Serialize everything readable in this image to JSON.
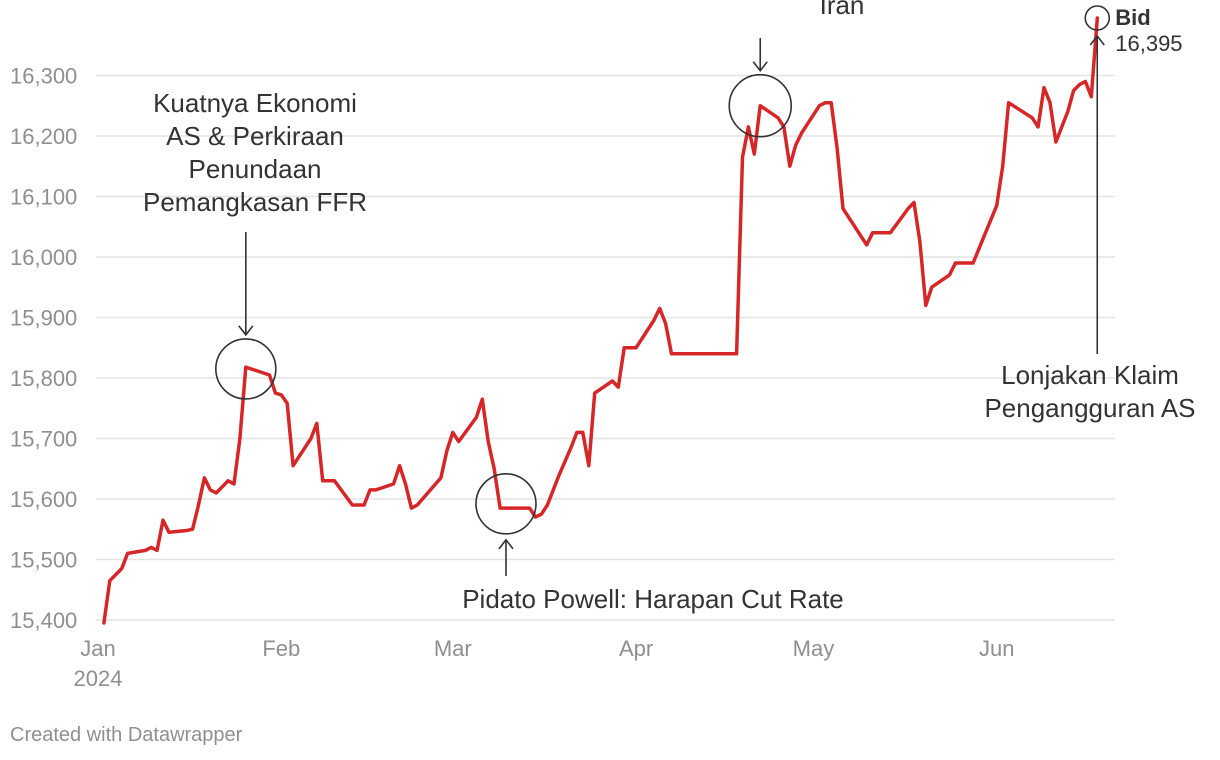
{
  "chart_data": {
    "type": "line",
    "title": "",
    "xlabel": "",
    "ylabel": "",
    "ylim": [
      15400,
      16395
    ],
    "y_ticks": [
      15400,
      15500,
      15600,
      15700,
      15800,
      15900,
      16000,
      16100,
      16200,
      16300
    ],
    "y_tick_labels": [
      "15,400",
      "15,500",
      "15,600",
      "15,700",
      "15,800",
      "15,900",
      "16,000",
      "16,100",
      "16,200",
      "16,300"
    ],
    "x_range": [
      "2024-01-01",
      "2024-06-21"
    ],
    "x_ticks": [
      {
        "date": "2024-01-01",
        "label": "Jan",
        "sub": "2024"
      },
      {
        "date": "2024-02-01",
        "label": "Feb",
        "sub": ""
      },
      {
        "date": "2024-03-01",
        "label": "Mar",
        "sub": ""
      },
      {
        "date": "2024-04-01",
        "label": "Apr",
        "sub": ""
      },
      {
        "date": "2024-05-01",
        "label": "May",
        "sub": ""
      },
      {
        "date": "2024-06-01",
        "label": "Jun",
        "sub": ""
      }
    ],
    "grid": true,
    "series": [
      {
        "name": "Bid",
        "color": "#d62728",
        "points": [
          [
            "2024-01-02",
            15395
          ],
          [
            "2024-01-03",
            15465
          ],
          [
            "2024-01-05",
            15485
          ],
          [
            "2024-01-06",
            15510
          ],
          [
            "2024-01-09",
            15515
          ],
          [
            "2024-01-10",
            15520
          ],
          [
            "2024-01-11",
            15515
          ],
          [
            "2024-01-12",
            15565
          ],
          [
            "2024-01-13",
            15545
          ],
          [
            "2024-01-16",
            15548
          ],
          [
            "2024-01-17",
            15550
          ],
          [
            "2024-01-18",
            15590
          ],
          [
            "2024-01-19",
            15635
          ],
          [
            "2024-01-20",
            15615
          ],
          [
            "2024-01-21",
            15610
          ],
          [
            "2024-01-23",
            15630
          ],
          [
            "2024-01-24",
            15625
          ],
          [
            "2024-01-25",
            15700
          ],
          [
            "2024-01-26",
            15818
          ],
          [
            "2024-01-30",
            15805
          ],
          [
            "2024-01-31",
            15775
          ],
          [
            "2024-02-01",
            15772
          ],
          [
            "2024-02-02",
            15758
          ],
          [
            "2024-02-03",
            15655
          ],
          [
            "2024-02-06",
            15700
          ],
          [
            "2024-02-07",
            15725
          ],
          [
            "2024-02-08",
            15630
          ],
          [
            "2024-02-10",
            15630
          ],
          [
            "2024-02-13",
            15590
          ],
          [
            "2024-02-15",
            15590
          ],
          [
            "2024-02-16",
            15615
          ],
          [
            "2024-02-17",
            15615
          ],
          [
            "2024-02-20",
            15625
          ],
          [
            "2024-02-21",
            15655
          ],
          [
            "2024-02-22",
            15625
          ],
          [
            "2024-02-23",
            15585
          ],
          [
            "2024-02-24",
            15590
          ],
          [
            "2024-02-28",
            15635
          ],
          [
            "2024-02-29",
            15680
          ],
          [
            "2024-03-01",
            15710
          ],
          [
            "2024-03-02",
            15695
          ],
          [
            "2024-03-05",
            15735
          ],
          [
            "2024-03-06",
            15765
          ],
          [
            "2024-03-07",
            15695
          ],
          [
            "2024-03-08",
            15650
          ],
          [
            "2024-03-09",
            15585
          ],
          [
            "2024-03-14",
            15585
          ],
          [
            "2024-03-15",
            15570
          ],
          [
            "2024-03-16",
            15575
          ],
          [
            "2024-03-17",
            15590
          ],
          [
            "2024-03-19",
            15640
          ],
          [
            "2024-03-21",
            15685
          ],
          [
            "2024-03-22",
            15710
          ],
          [
            "2024-03-23",
            15710
          ],
          [
            "2024-03-24",
            15655
          ],
          [
            "2024-03-25",
            15775
          ],
          [
            "2024-03-28",
            15795
          ],
          [
            "2024-03-29",
            15785
          ],
          [
            "2024-03-30",
            15850
          ],
          [
            "2024-04-01",
            15850
          ],
          [
            "2024-04-04",
            15895
          ],
          [
            "2024-04-05",
            15915
          ],
          [
            "2024-04-06",
            15890
          ],
          [
            "2024-04-07",
            15840
          ],
          [
            "2024-04-18",
            15840
          ],
          [
            "2024-04-19",
            16165
          ],
          [
            "2024-04-20",
            16215
          ],
          [
            "2024-04-21",
            16170
          ],
          [
            "2024-04-22",
            16250
          ],
          [
            "2024-04-25",
            16230
          ],
          [
            "2024-04-26",
            16215
          ],
          [
            "2024-04-27",
            16150
          ],
          [
            "2024-04-28",
            16185
          ],
          [
            "2024-04-29",
            16205
          ],
          [
            "2024-05-02",
            16250
          ],
          [
            "2024-05-03",
            16255
          ],
          [
            "2024-05-04",
            16255
          ],
          [
            "2024-05-05",
            16180
          ],
          [
            "2024-05-06",
            16080
          ],
          [
            "2024-05-10",
            16020
          ],
          [
            "2024-05-11",
            16040
          ],
          [
            "2024-05-14",
            16040
          ],
          [
            "2024-05-17",
            16080
          ],
          [
            "2024-05-18",
            16090
          ],
          [
            "2024-05-19",
            16025
          ],
          [
            "2024-05-20",
            15920
          ],
          [
            "2024-05-21",
            15950
          ],
          [
            "2024-05-24",
            15970
          ],
          [
            "2024-05-25",
            15990
          ],
          [
            "2024-05-28",
            15990
          ],
          [
            "2024-06-01",
            16085
          ],
          [
            "2024-06-02",
            16150
          ],
          [
            "2024-06-03",
            16255
          ],
          [
            "2024-06-07",
            16230
          ],
          [
            "2024-06-08",
            16215
          ],
          [
            "2024-06-09",
            16280
          ],
          [
            "2024-06-10",
            16255
          ],
          [
            "2024-06-11",
            16190
          ],
          [
            "2024-06-13",
            16240
          ],
          [
            "2024-06-14",
            16275
          ],
          [
            "2024-06-15",
            16285
          ],
          [
            "2024-06-16",
            16290
          ],
          [
            "2024-06-17",
            16265
          ],
          [
            "2024-06-18",
            16395
          ]
        ]
      }
    ],
    "end_label": {
      "name": "Bid",
      "value": "16,395"
    },
    "annotations": [
      {
        "lines": [
          "Kuatnya Ekonomi",
          "AS & Perkiraan",
          "Penundaan",
          "Pemangkasan FFR"
        ],
        "date": "2024-01-26",
        "value": 15815,
        "arrow": "down",
        "circle": true
      },
      {
        "lines": [
          "Pidato Powell: Harapan Cut Rate"
        ],
        "date": "2024-03-10",
        "value": 15592,
        "arrow": "up",
        "circle": true
      },
      {
        "lines": [
          "Iran"
        ],
        "date": "2024-04-22",
        "value": 16250,
        "arrow": "down",
        "circle": true
      },
      {
        "lines": [
          "Lonjakan Klaim",
          "Pengangguran AS"
        ],
        "date": "2024-06-18",
        "value": 16395,
        "arrow": "up",
        "circle": true
      }
    ]
  },
  "footer": {
    "credit": "Created with Datawrapper"
  }
}
